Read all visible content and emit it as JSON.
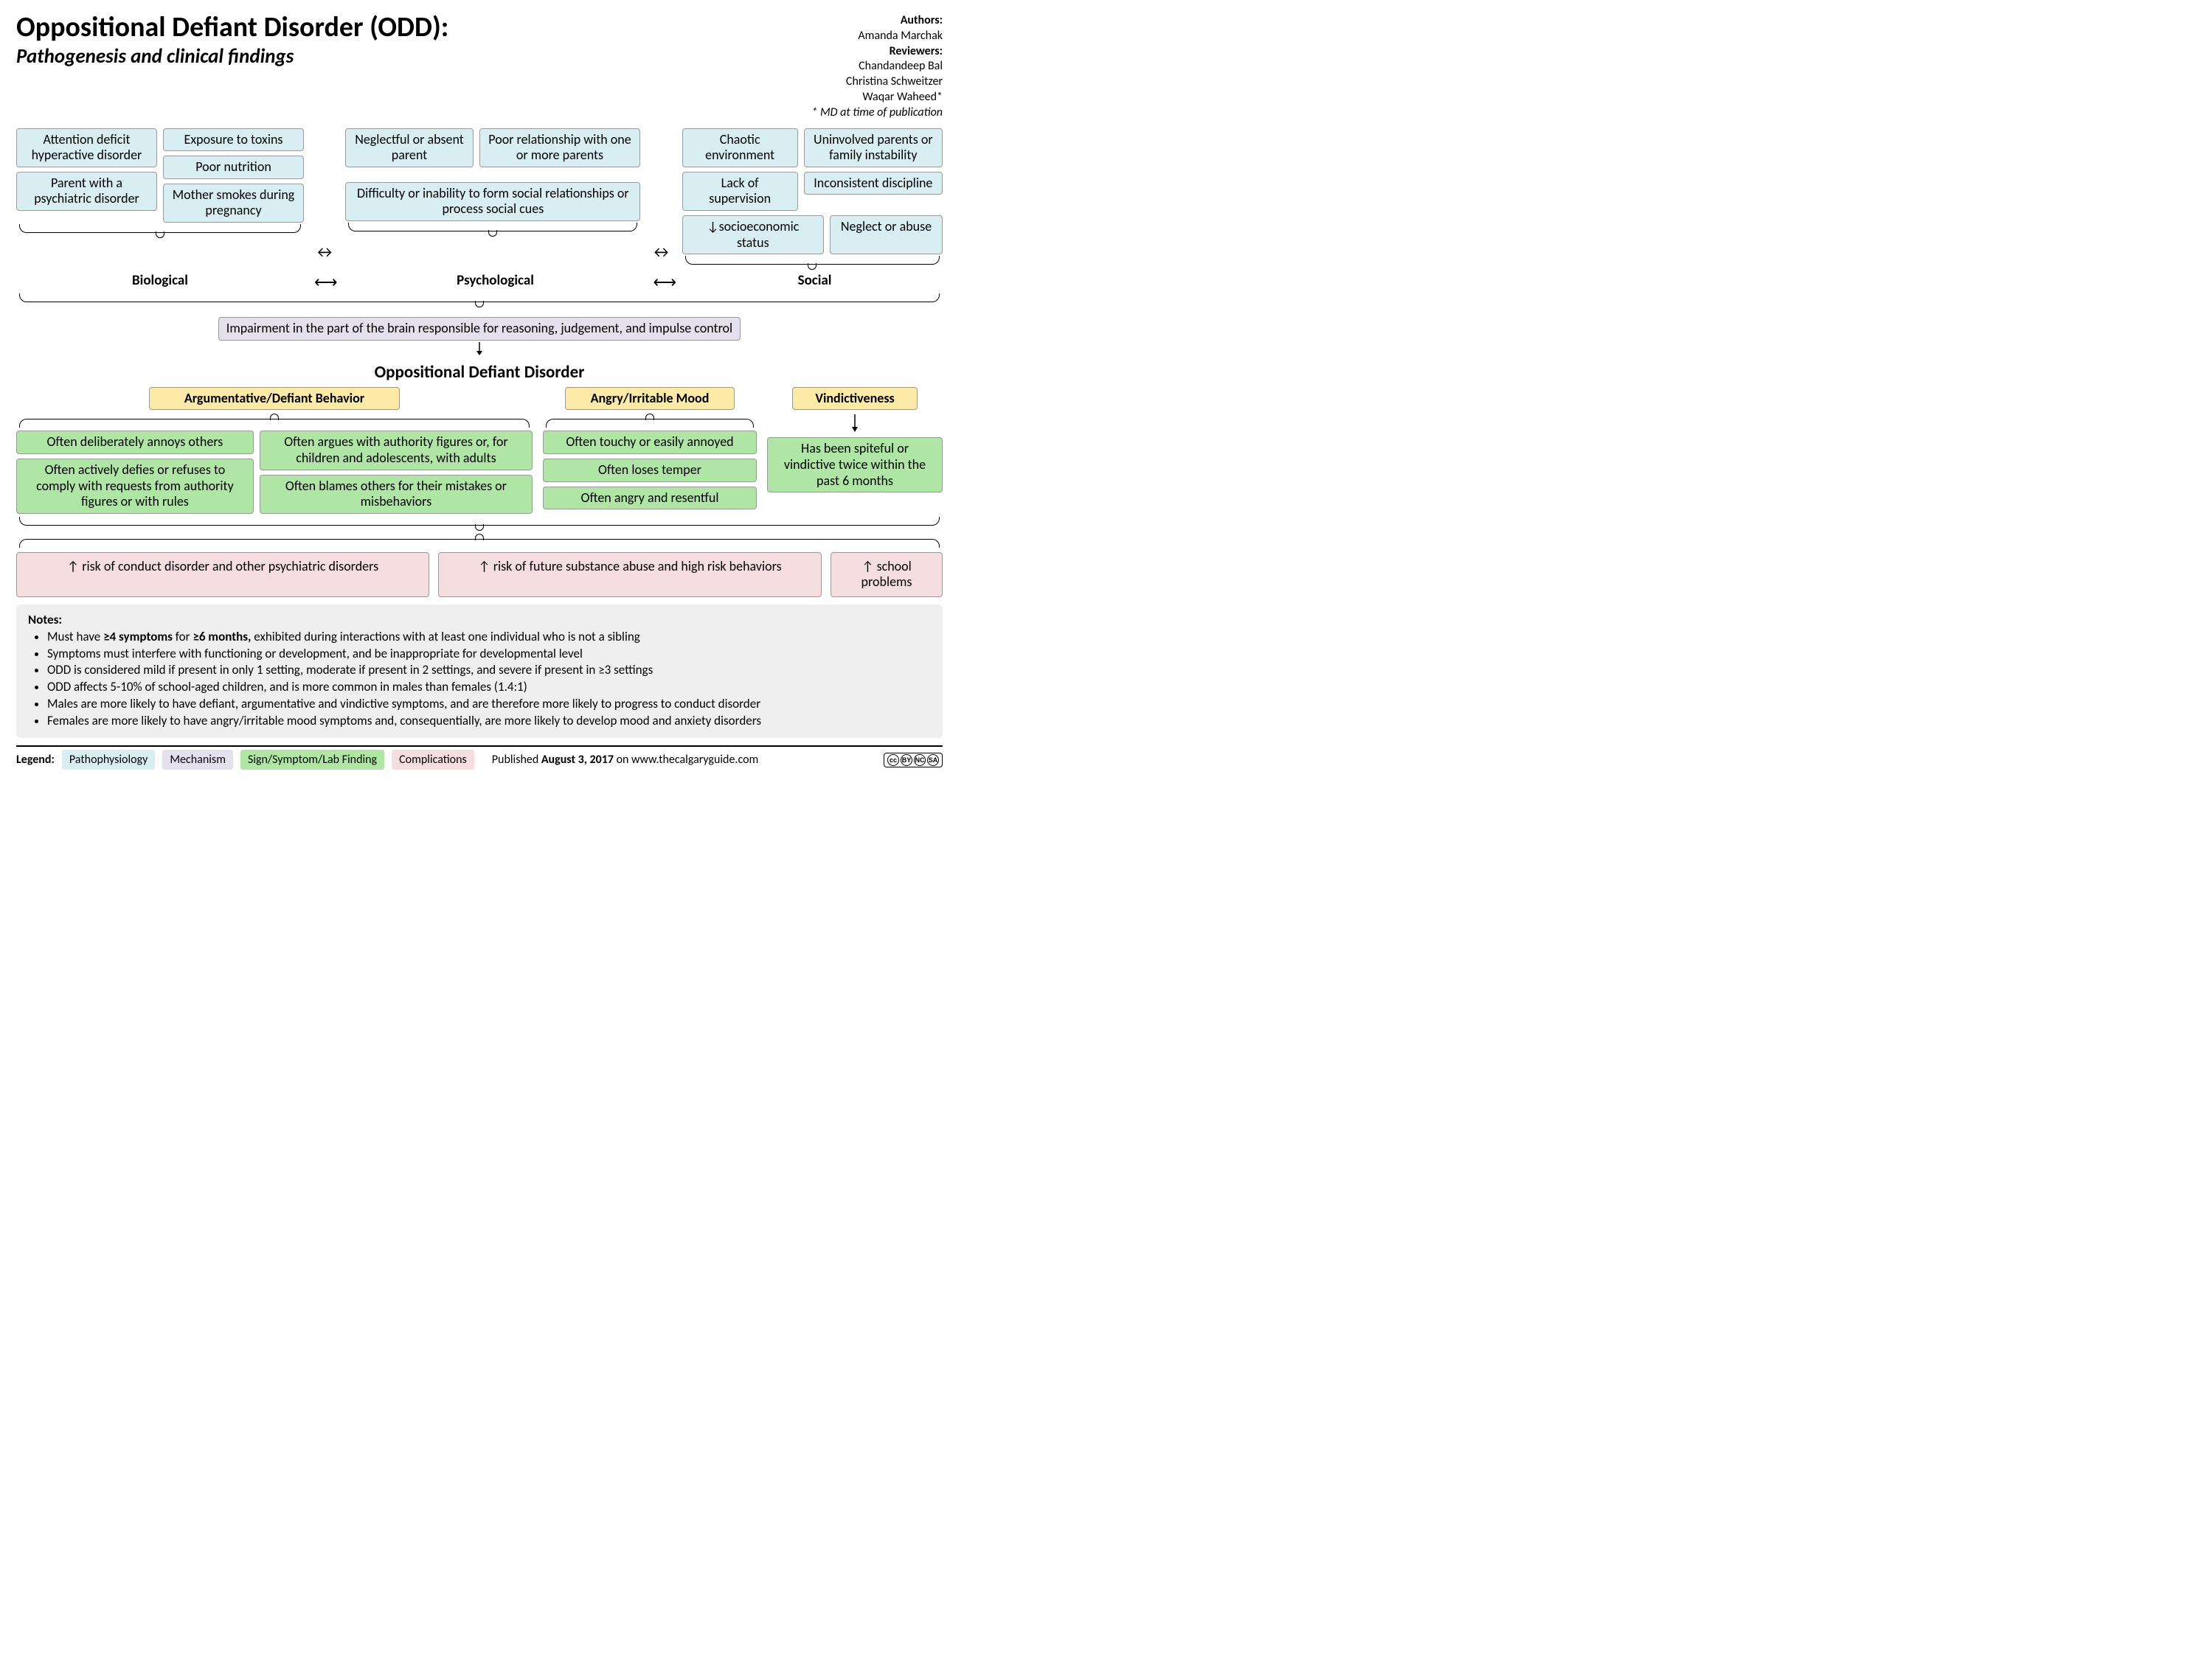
{
  "colors": {
    "blue": "#d9eef2",
    "purple": "#e5e0ee",
    "green": "#afe6a5",
    "pink": "#f5dde0",
    "yellow": "#fde9a8",
    "notes_bg": "#efefef",
    "border": "#999999",
    "text": "#000000",
    "page_bg": "#ffffff"
  },
  "typography": {
    "title_size_pt": 38,
    "subtitle_size_pt": 27,
    "body_size_pt": 18,
    "category_size_pt": 19,
    "odd_title_size_pt": 23,
    "notes_size_pt": 17,
    "credits_size_pt": 16
  },
  "header": {
    "title": "Oppositional Defiant Disorder (ODD):",
    "subtitle": "Pathogenesis and clinical findings"
  },
  "credits": {
    "authors_label": "Authors:",
    "authors": [
      "Amanda Marchak"
    ],
    "reviewers_label": "Reviewers:",
    "reviewers": [
      "Chandandeep Bal",
      "Christina Schweitzer",
      "Waqar Waheed*"
    ],
    "footnote": "* MD at time of publication"
  },
  "factors": {
    "biological": {
      "label": "Biological",
      "col1": [
        "Attention deficit hyperactive disorder",
        "Parent with a psychiatric disorder"
      ],
      "col2": [
        "Exposure to toxins",
        "Poor nutrition",
        "Mother smokes during pregnancy"
      ]
    },
    "psychological": {
      "label": "Psychological",
      "row1_a": "Neglectful or absent parent",
      "row1_b": "Poor relationship with one or more parents",
      "row2": "Difficulty or inability to form social relationships or process social cues"
    },
    "social": {
      "label": "Social",
      "col1": [
        "Chaotic environment",
        "Lack of supervision"
      ],
      "col2": [
        "Uninvolved parents or family instability",
        "Inconsistent discipline"
      ],
      "row3_a": "↓socioeconomic status",
      "row3_b": "Neglect or abuse"
    }
  },
  "impairment": "Impairment in the part of the brain responsible for reasoning, judgement, and impulse control",
  "odd_title": "Oppositional Defiant Disorder",
  "symptoms": {
    "defiant": {
      "heading": "Argumentative/Defiant Behavior",
      "left": [
        "Often deliberately annoys others",
        "Often actively defies or refuses to comply with requests from authority figures or with rules"
      ],
      "right": [
        "Often argues with authority figures or, for children and adolescents, with adults",
        "Often blames others for their mistakes or misbehaviors"
      ]
    },
    "angry": {
      "heading": "Angry/Irritable Mood",
      "items": [
        "Often touchy or easily annoyed",
        "Often loses temper",
        "Often angry and resentful"
      ]
    },
    "vindictive": {
      "heading": "Vindictiveness",
      "item": "Has been spiteful or vindictive twice within the past 6 months"
    }
  },
  "complications": [
    "↑ risk of conduct disorder and other psychiatric disorders",
    "↑ risk of future substance abuse and high risk behaviors",
    "↑ school problems"
  ],
  "notes": {
    "title": "Notes:",
    "items": [
      "Must have <b>≥4 symptoms</b> for <b>≥6 months,</b> exhibited during interactions with at least one individual who is not a sibling",
      "Symptoms must interfere with functioning or development, and be inappropriate for developmental level",
      "ODD is considered mild if present in only 1 setting, moderate if present in 2 settings, and severe if present in ≥3 settings",
      "ODD affects 5-10% of school-aged children, and is more common in males than females (1.4:1)",
      "Males are more likely to have defiant, argumentative and vindictive symptoms, and are therefore more likely to progress to conduct disorder",
      "Females are more likely to have angry/irritable mood symptoms and, consequentially, are more likely to develop mood and anxiety disorders"
    ]
  },
  "legend": {
    "label": "Legend:",
    "items": [
      {
        "text": "Pathophysiology",
        "color": "blue"
      },
      {
        "text": "Mechanism",
        "color": "purple"
      },
      {
        "text": "Sign/Symptom/Lab Finding",
        "color": "green"
      },
      {
        "text": "Complications",
        "color": "pink"
      }
    ],
    "published_prefix": "Published ",
    "published_date": "August 3, 2017",
    "published_suffix": " on www.thecalgaryguide.com",
    "cc": {
      "cc": "cc",
      "by": "BY",
      "nc": "NC",
      "sa": "SA"
    }
  }
}
